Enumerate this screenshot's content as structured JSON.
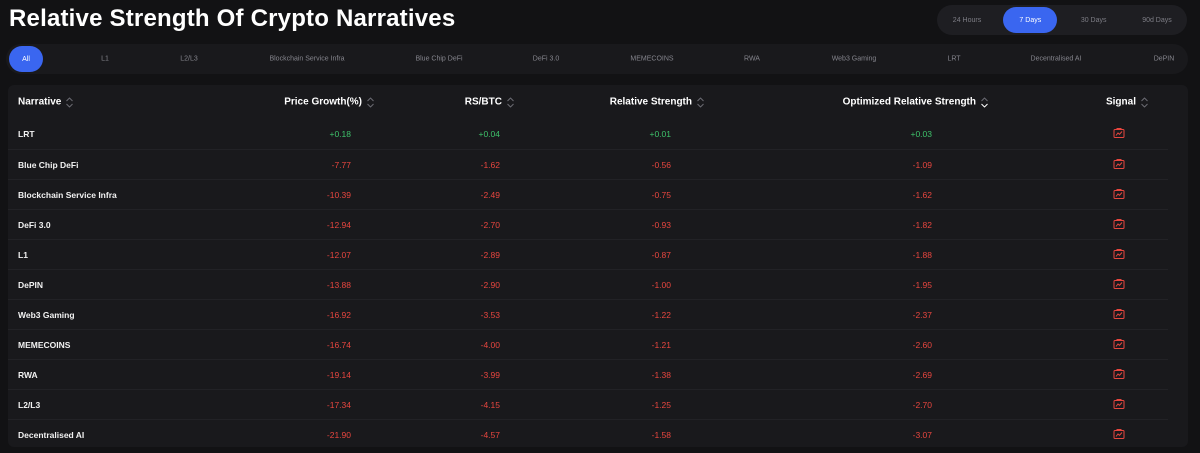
{
  "title": "Relative Strength Of Crypto Narratives",
  "colors": {
    "accent": "#3a66f0",
    "positive": "#3ec26a",
    "negative": "#e8463f"
  },
  "time_range": {
    "options": [
      "24 Hours",
      "7 Days",
      "30 Days",
      "90d Days"
    ],
    "selected": "7 Days"
  },
  "filters": {
    "items": [
      "All",
      "L1",
      "L2/L3",
      "Blockchain Service Infra",
      "Blue Chip DeFi",
      "DeFi 3.0",
      "MEMECOINS",
      "RWA",
      "Web3 Gaming",
      "LRT",
      "Decentralised AI",
      "DePIN"
    ],
    "selected": "All"
  },
  "table": {
    "headers": [
      "Narrative",
      "Price Growth(%)",
      "RS/BTC",
      "Relative Strength",
      "Optimized Relative Strength",
      "Signal"
    ],
    "rows": [
      {
        "narrative": "LRT",
        "price_growth": "+0.18",
        "rs_btc": "+0.04",
        "relative_strength": "+0.01",
        "optimized_rs": "+0.03"
      },
      {
        "narrative": "Blue Chip DeFi",
        "price_growth": "-7.77",
        "rs_btc": "-1.62",
        "relative_strength": "-0.56",
        "optimized_rs": "-1.09"
      },
      {
        "narrative": "Blockchain Service Infra",
        "price_growth": "-10.39",
        "rs_btc": "-2.49",
        "relative_strength": "-0.75",
        "optimized_rs": "-1.62"
      },
      {
        "narrative": "DeFi 3.0",
        "price_growth": "-12.94",
        "rs_btc": "-2.70",
        "relative_strength": "-0.93",
        "optimized_rs": "-1.82"
      },
      {
        "narrative": "L1",
        "price_growth": "-12.07",
        "rs_btc": "-2.89",
        "relative_strength": "-0.87",
        "optimized_rs": "-1.88"
      },
      {
        "narrative": "DePIN",
        "price_growth": "-13.88",
        "rs_btc": "-2.90",
        "relative_strength": "-1.00",
        "optimized_rs": "-1.95"
      },
      {
        "narrative": "Web3 Gaming",
        "price_growth": "-16.92",
        "rs_btc": "-3.53",
        "relative_strength": "-1.22",
        "optimized_rs": "-2.37"
      },
      {
        "narrative": "MEMECOINS",
        "price_growth": "-16.74",
        "rs_btc": "-4.00",
        "relative_strength": "-1.21",
        "optimized_rs": "-2.60"
      },
      {
        "narrative": "RWA",
        "price_growth": "-19.14",
        "rs_btc": "-3.99",
        "relative_strength": "-1.38",
        "optimized_rs": "-2.69"
      },
      {
        "narrative": "L2/L3",
        "price_growth": "-17.34",
        "rs_btc": "-4.15",
        "relative_strength": "-1.25",
        "optimized_rs": "-2.70"
      },
      {
        "narrative": "Decentralised AI",
        "price_growth": "-21.90",
        "rs_btc": "-4.57",
        "relative_strength": "-1.58",
        "optimized_rs": "-3.07"
      }
    ],
    "signal_icon": "chart-signal-icon",
    "sort_icon": "sort-updown-icon"
  }
}
